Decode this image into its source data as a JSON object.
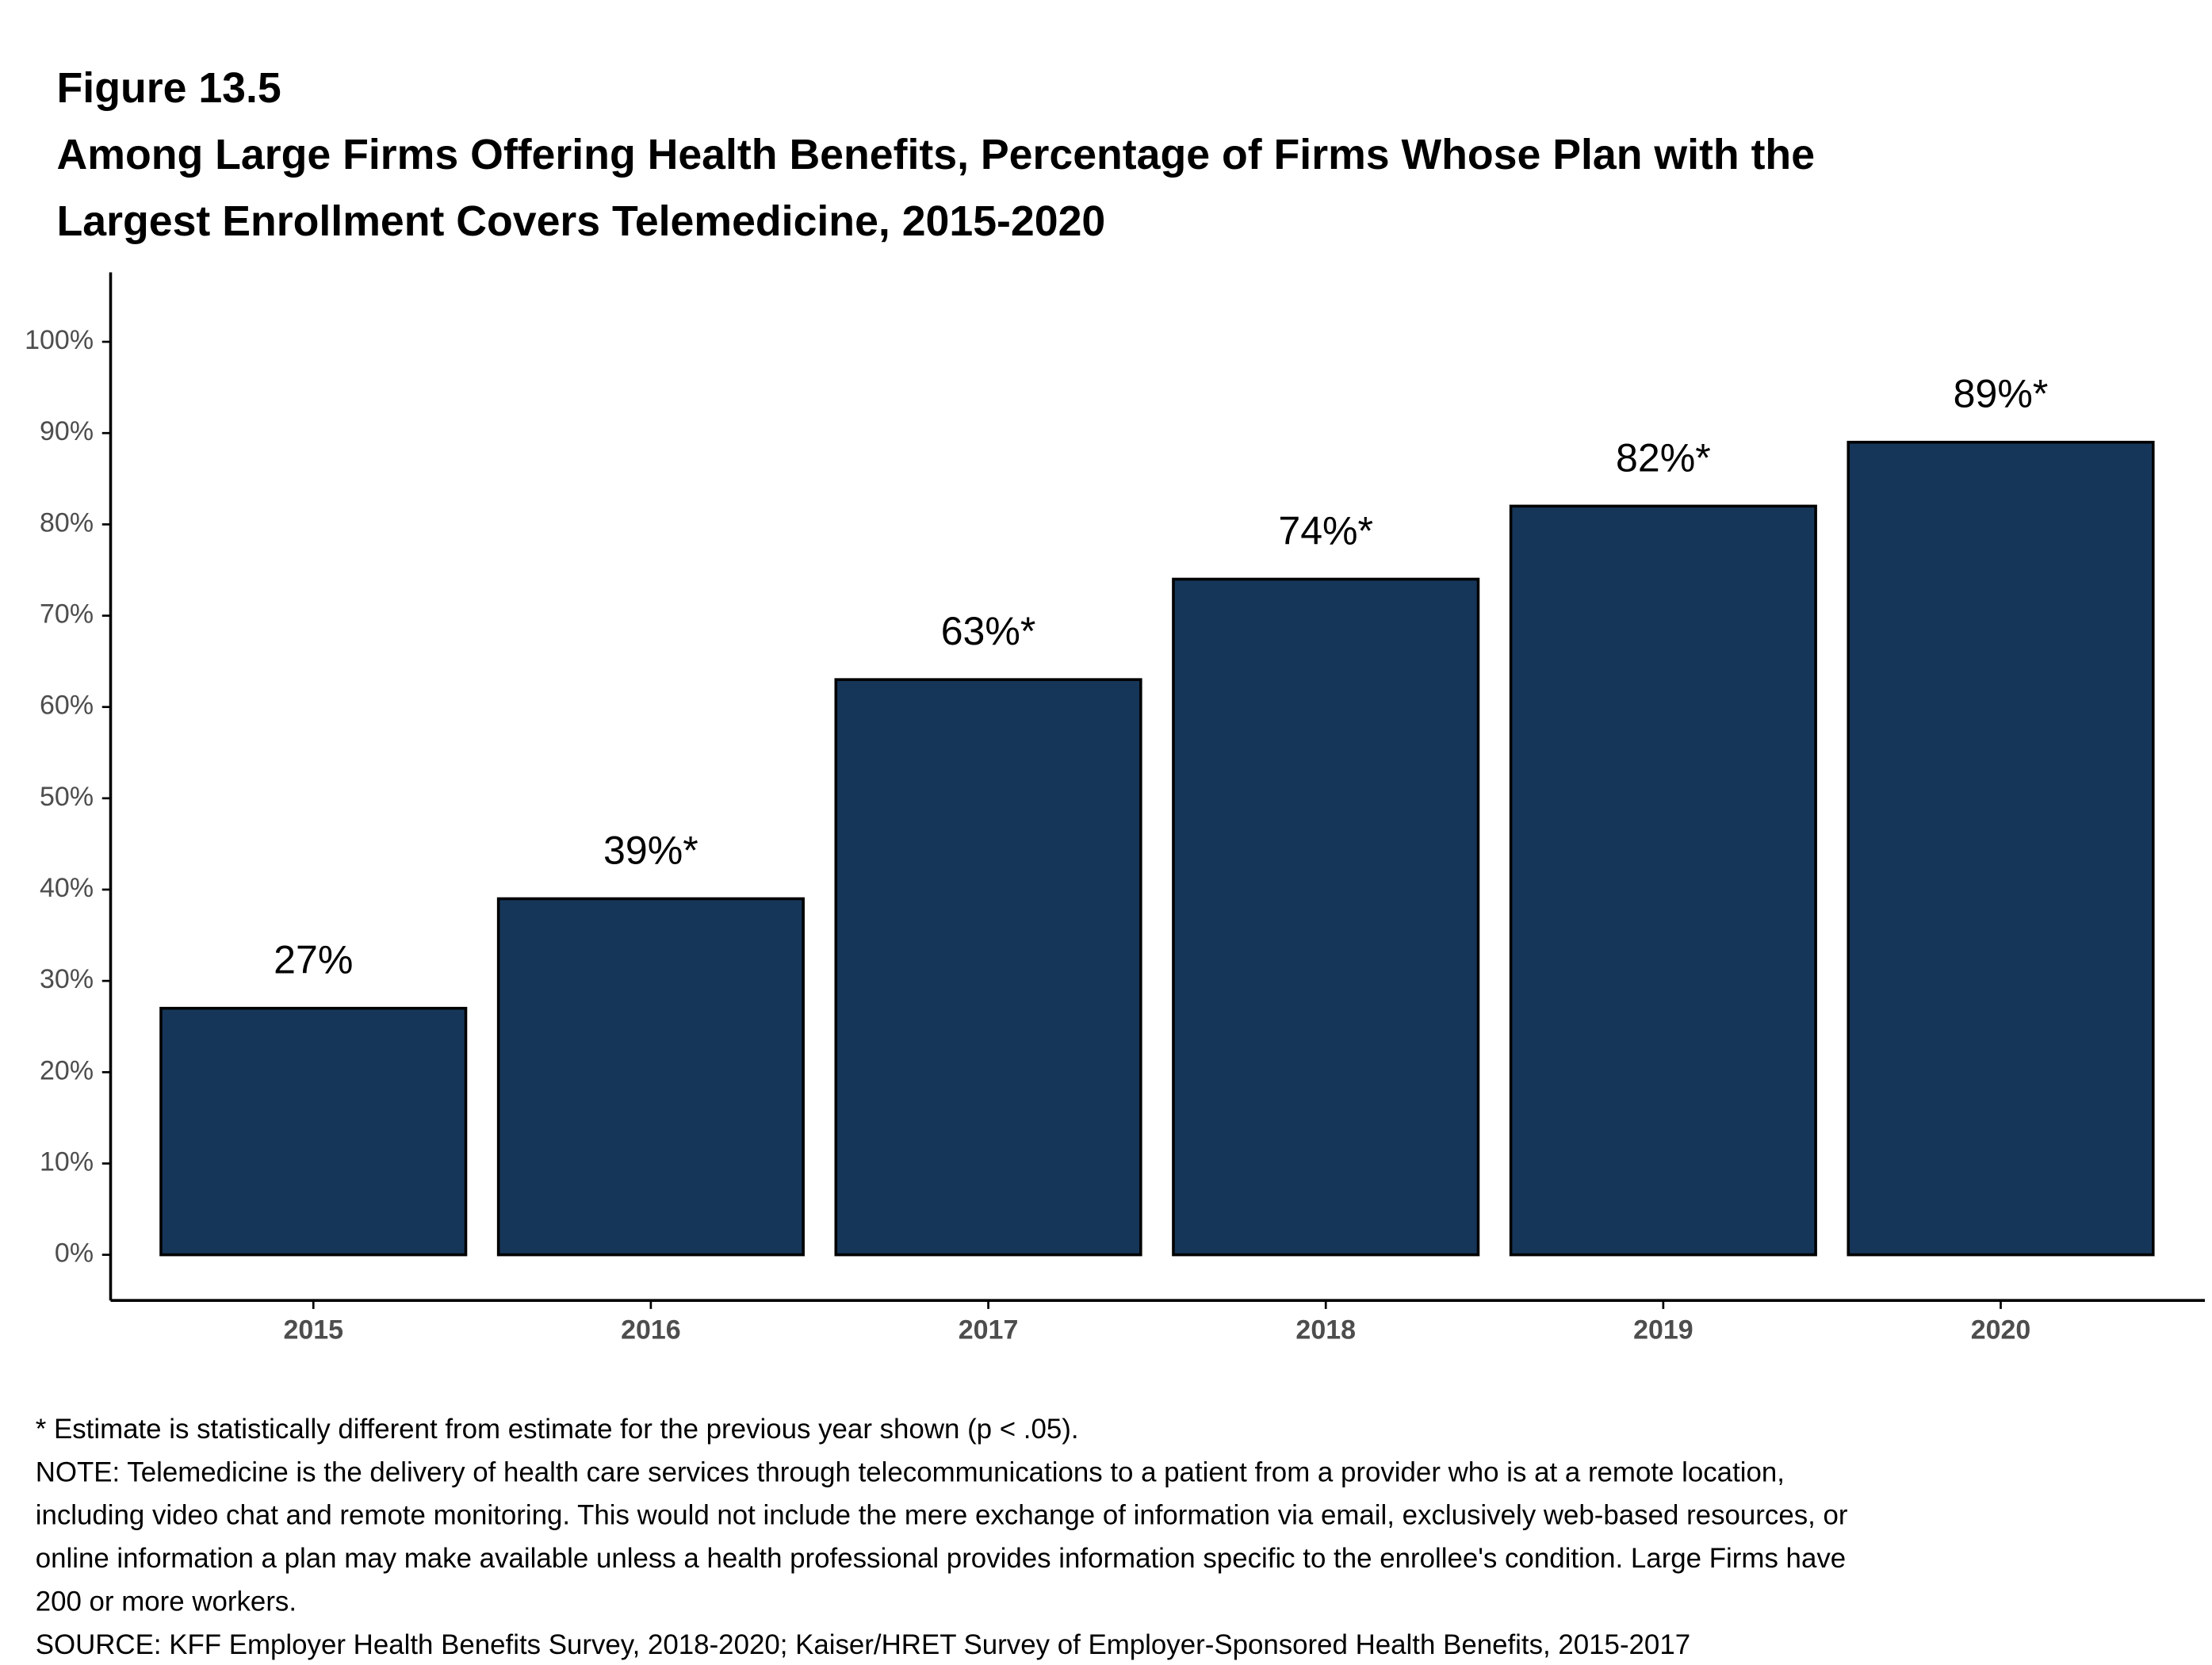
{
  "chart_data": {
    "type": "bar",
    "supertitle": "Figure 13.5",
    "title": [
      "Among Large Firms Offering Health Benefits, Percentage of Firms Whose Plan with the",
      "Largest Enrollment Covers Telemedicine, 2015-2020"
    ],
    "categories": [
      "2015",
      "2016",
      "2017",
      "2018",
      "2019",
      "2020"
    ],
    "values": [
      27,
      39,
      63,
      74,
      82,
      89
    ],
    "value_labels": [
      "27%",
      "39%*",
      "63%*",
      "74%*",
      "82%*",
      "89%*"
    ],
    "color": "#163659",
    "ylim": [
      -5,
      107.6
    ],
    "yticks": [
      {
        "value": 0,
        "label": "0%"
      },
      {
        "value": 10,
        "label": "10%"
      },
      {
        "value": 20,
        "label": "20%"
      },
      {
        "value": 30,
        "label": "30%"
      },
      {
        "value": 40,
        "label": "40%"
      },
      {
        "value": 50,
        "label": "50%"
      },
      {
        "value": 60,
        "label": "60%"
      },
      {
        "value": 70,
        "label": "70%"
      },
      {
        "value": 80,
        "label": "80%"
      },
      {
        "value": 90,
        "label": "90%"
      },
      {
        "value": 100,
        "label": "100%"
      }
    ],
    "grid": false,
    "notes": [
      "* Estimate is statistically different from estimate for the previous year shown (p < .05).",
      "NOTE: Telemedicine is the delivery of health care services through telecommunications to a patient from a provider who is at a remote location,",
      "including video chat and remote monitoring. This would not include the mere exchange of information via email, exclusively web-based resources, or",
      "online information a plan may make available unless a health professional provides information specific to the enrollee's condition. Large Firms have",
      "200 or more workers.",
      "SOURCE: KFF Employer Health Benefits Survey, 2018-2020; Kaiser/HRET Survey of Employer-Sponsored Health Benefits, 2015-2017"
    ]
  }
}
